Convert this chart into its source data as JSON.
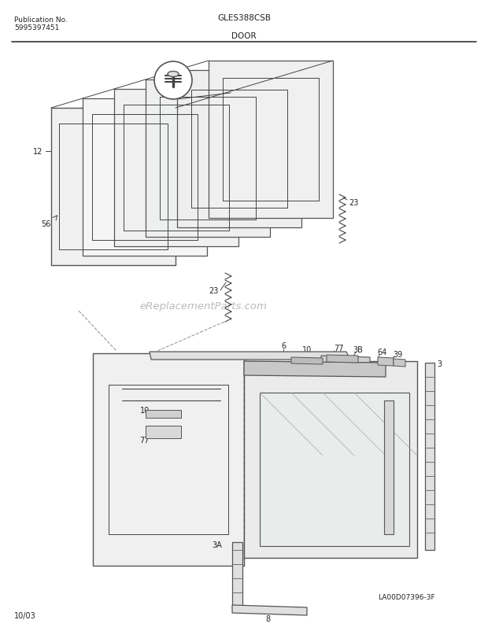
{
  "title_model": "GLES388CSB",
  "title_section": "DOOR",
  "pub_no_label": "Publication No.",
  "pub_no": "5995397451",
  "date": "10/03",
  "diagram_id": "LA00D07396-3F",
  "watermark": "eReplacementParts.com",
  "bg_color": "#ffffff",
  "lc": "#444444",
  "tc": "#222222",
  "wc": "#bbbbbb"
}
